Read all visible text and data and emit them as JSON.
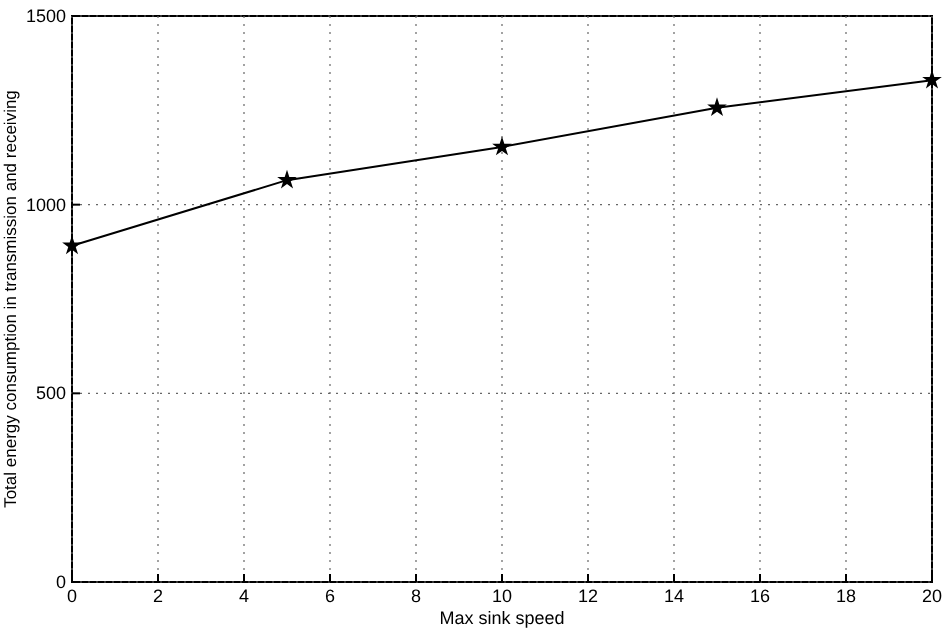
{
  "chart_data": {
    "type": "line",
    "xlabel": "Max sink speed",
    "ylabel": "Total energy consumption in transmission and receiving",
    "x": [
      0,
      5,
      10,
      15,
      20
    ],
    "series": [
      {
        "color": "#000000",
        "values": [
          891,
          1065,
          1153,
          1257,
          1330
        ]
      }
    ],
    "xlim": [
      0,
      20
    ],
    "xticks": [
      0,
      2,
      4,
      6,
      8,
      10,
      12,
      14,
      16,
      18,
      20
    ],
    "ylim": [
      0,
      1500
    ],
    "yticks": [
      0,
      500,
      1000,
      1500
    ],
    "grid": true,
    "marker": "star",
    "line_style": "solid"
  }
}
